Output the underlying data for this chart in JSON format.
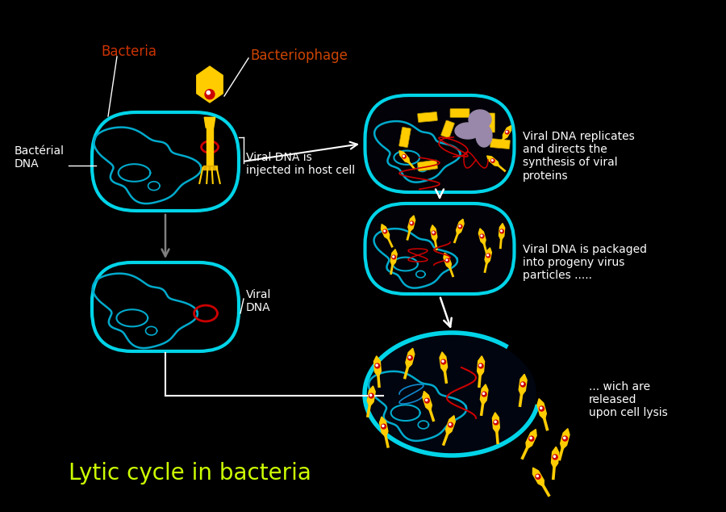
{
  "background_color": "#000000",
  "title": "Lytic cycle in bacteria",
  "title_color": "#ccff00",
  "title_fontsize": 20,
  "cell_outline_color": "#00d4e8",
  "bacteria_dna_color": "#00aacc",
  "viral_dna_color": "#cc0000",
  "phage_body_color": "#ffcc00",
  "text_white": "#ffffff",
  "text_red": "#cc3300",
  "text_orange": "#cc4400",
  "arrow_gray": "#808080",
  "arrow_white": "#ffffff",
  "label_bacteria": "Bacteria",
  "label_bacteriophage": "Bacteriophage",
  "label_bact_dna": "Bactérial\nDNA",
  "label_viral_dna_inject": "Viral DNA is\ninjected in host cell",
  "label_viral_dna": "Viral\nDNA",
  "label_replicates": "Viral DNA replicates\nand directs the\nsynthesis of viral\nproteins",
  "label_packaged": "Viral DNA is packaged\ninto progeny virus\nparticles .....",
  "label_released": "... wich are\nreleased\nupon cell lysis"
}
